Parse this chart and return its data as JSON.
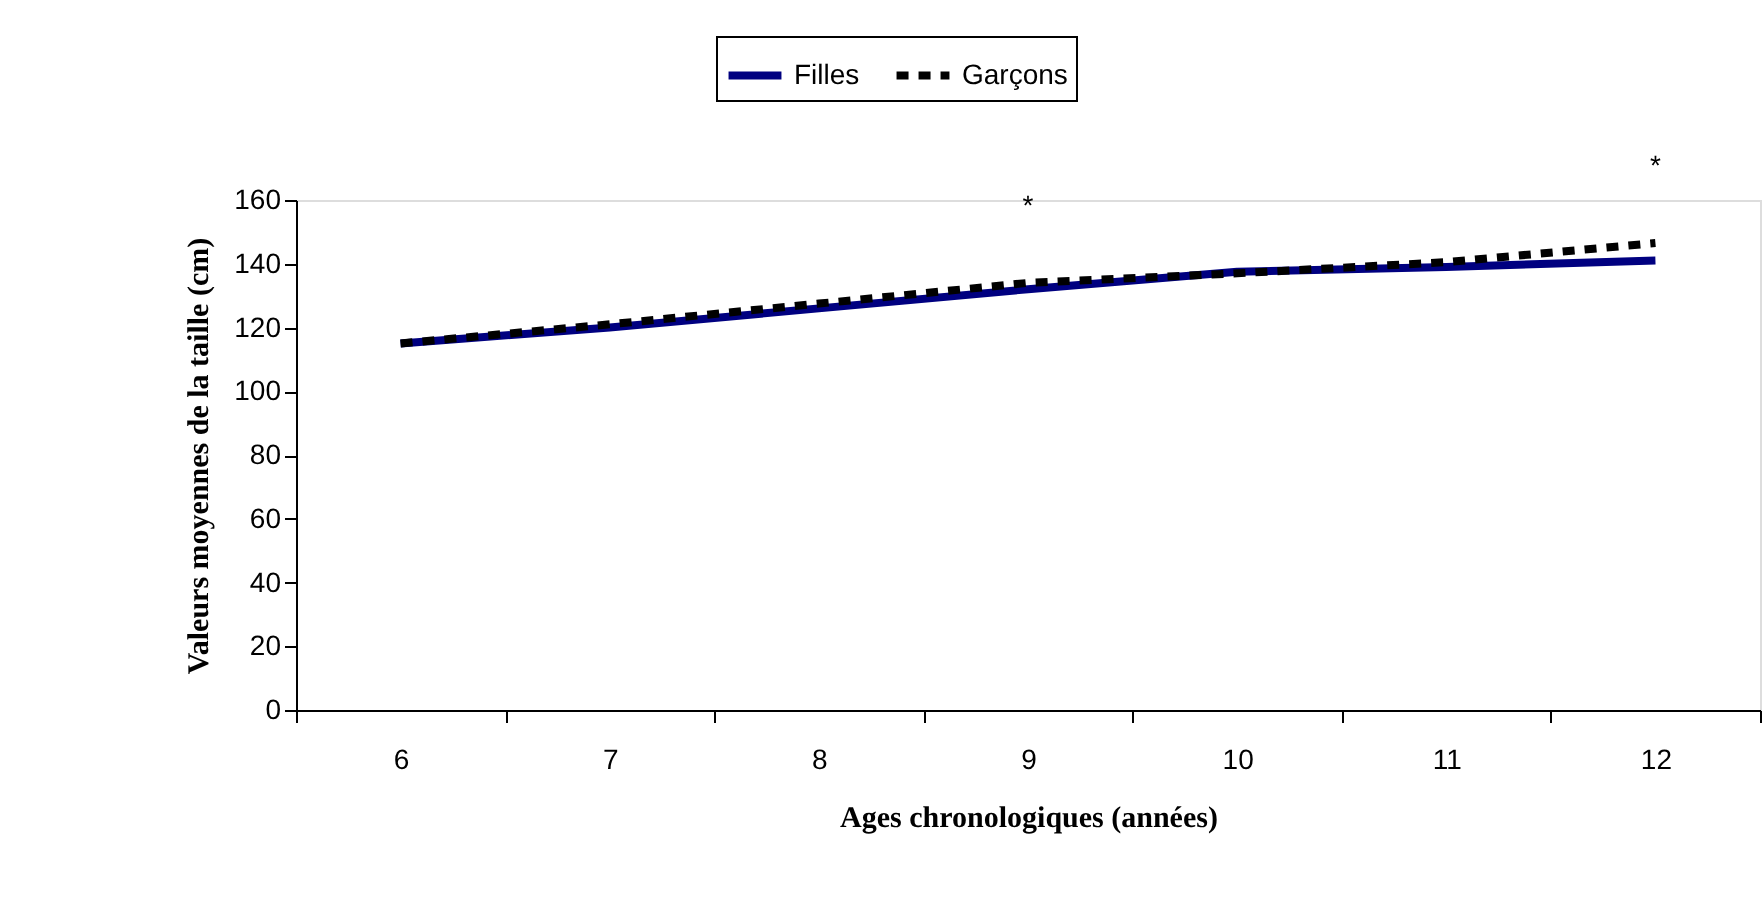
{
  "chart_data": {
    "type": "line",
    "xlabel": "Ages chronologiques (années)",
    "ylabel": "Valeurs moyennes de la taille (cm)",
    "categories": [
      "6",
      "7",
      "8",
      "9",
      "10",
      "11",
      "12"
    ],
    "series": [
      {
        "name": "Filles",
        "color": "#000080",
        "line_style": "solid",
        "values": [
          115,
          120,
          126,
          132,
          137.5,
          139,
          141
        ]
      },
      {
        "name": "Garçons",
        "color": "#000000",
        "line_style": "dashed",
        "values": [
          115,
          121,
          127.5,
          134,
          137,
          140.5,
          146.5
        ]
      }
    ],
    "ylim": [
      0,
      160
    ],
    "yticks": [
      0,
      20,
      40,
      60,
      80,
      100,
      120,
      140,
      160
    ],
    "grid": false,
    "legend": "top",
    "marker": "none",
    "annotations": [
      {
        "text": "*",
        "x": "9",
        "y": 134
      },
      {
        "text": "*",
        "x": "12",
        "y": 146.5
      }
    ]
  }
}
